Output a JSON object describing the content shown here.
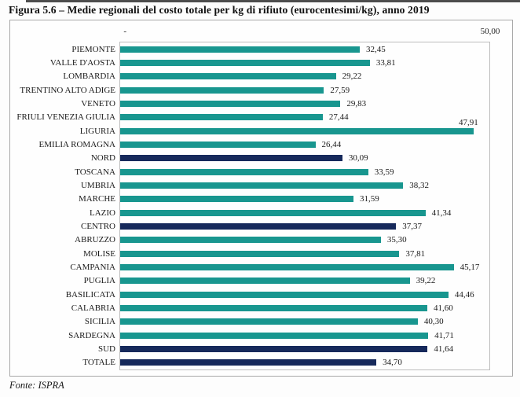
{
  "page": {
    "title": "Figura 5.6 – Medie regionali del costo totale per kg di rifiuto (eurocentesimi/kg), anno 2019",
    "source": "Fonte: ISPRA"
  },
  "colors": {
    "bar_region": "#18968F",
    "bar_aggregate": "#16295B",
    "chart_border": "#a8a8a8",
    "plot_border": "#bdbdbd"
  },
  "chart_data": {
    "type": "bar",
    "orientation": "horizontal",
    "title": "Figura 5.6 – Medie regionali del costo totale per kg di rifiuto (eurocentesimi/kg), anno 2019",
    "xlabel": "",
    "ylabel": "",
    "xlim": [
      0,
      50
    ],
    "grid": false,
    "legend": false,
    "axis": {
      "min_label": "-",
      "max_label": "50,00"
    },
    "categories": [
      "PIEMONTE",
      "VALLE D'AOSTA",
      "LOMBARDIA",
      "TRENTINO ALTO ADIGE",
      "VENETO",
      "FRIULI VENEZIA GIULIA",
      "LIGURIA",
      "EMILIA ROMAGNA",
      "NORD",
      "TOSCANA",
      "UMBRIA",
      "MARCHE",
      "LAZIO",
      "CENTRO",
      "ABRUZZO",
      "MOLISE",
      "CAMPANIA",
      "PUGLIA",
      "BASILICATA",
      "CALABRIA",
      "SICILIA",
      "SARDEGNA",
      "SUD",
      "TOTALE"
    ],
    "values": [
      32.45,
      33.81,
      29.22,
      27.59,
      29.83,
      27.44,
      47.91,
      26.44,
      30.09,
      33.59,
      38.32,
      31.59,
      41.34,
      37.37,
      35.3,
      37.81,
      45.17,
      39.22,
      44.46,
      41.6,
      40.3,
      41.71,
      41.64,
      34.7
    ],
    "value_labels": [
      "32,45",
      "33,81",
      "29,22",
      "27,59",
      "29,83",
      "27,44",
      "47,91",
      "26,44",
      "30,09",
      "33,59",
      "38,32",
      "31,59",
      "41,34",
      "37,37",
      "35,30",
      "37,81",
      "45,17",
      "39,22",
      "44,46",
      "41,60",
      "40,30",
      "41,71",
      "41,64",
      "34,70"
    ],
    "aggregate_rows": [
      "NORD",
      "CENTRO",
      "SUD",
      "TOTALE"
    ]
  }
}
